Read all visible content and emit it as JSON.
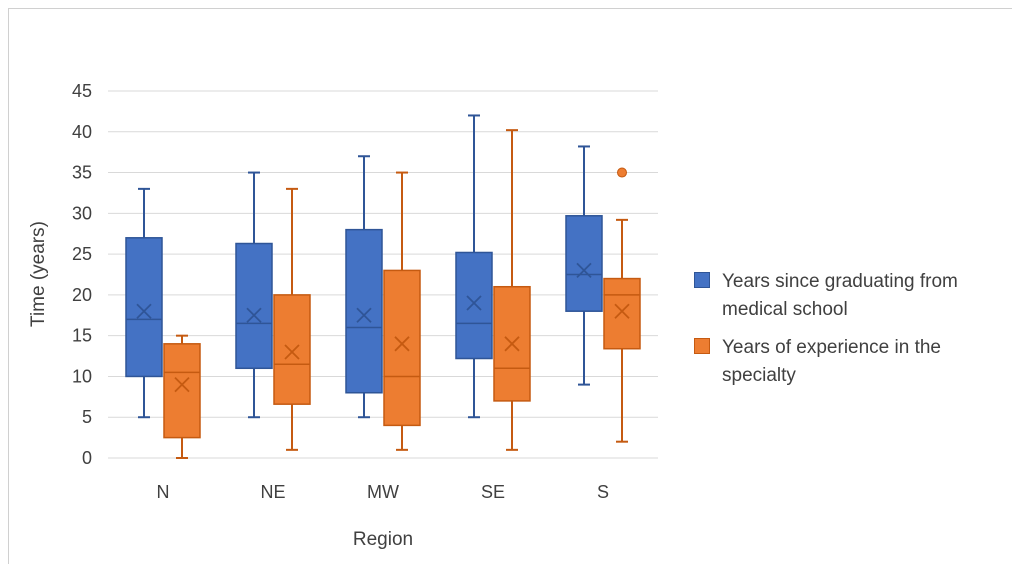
{
  "chart_data": {
    "type": "box",
    "xlabel": "Region",
    "ylabel": "Time (years)",
    "ylim": [
      0,
      45
    ],
    "yticks": [
      0,
      5,
      10,
      15,
      20,
      25,
      30,
      35,
      40,
      45
    ],
    "grid": true,
    "legend_position": "right",
    "categories": [
      "N",
      "NE",
      "MW",
      "SE",
      "S"
    ],
    "series": [
      {
        "name": "Years since graduating from medical school",
        "color": "#4472C4",
        "stroke": "#2F5597",
        "boxes": [
          {
            "min": 5,
            "q1": 10,
            "median": 17,
            "q3": 27,
            "max": 33,
            "mean": 18,
            "outliers": []
          },
          {
            "min": 5,
            "q1": 11,
            "median": 16.5,
            "q3": 26.3,
            "max": 35,
            "mean": 17.5,
            "outliers": []
          },
          {
            "min": 5,
            "q1": 8,
            "median": 16,
            "q3": 28,
            "max": 37,
            "mean": 17.5,
            "outliers": []
          },
          {
            "min": 5,
            "q1": 12.2,
            "median": 16.5,
            "q3": 25.2,
            "max": 42,
            "mean": 19,
            "outliers": []
          },
          {
            "min": 9,
            "q1": 18,
            "median": 22.5,
            "q3": 29.7,
            "max": 38.2,
            "mean": 23,
            "outliers": []
          }
        ]
      },
      {
        "name": "Years of experience in the specialty",
        "color": "#ED7D31",
        "stroke": "#C55A11",
        "boxes": [
          {
            "min": 0,
            "q1": 2.5,
            "median": 10.5,
            "q3": 14,
            "max": 15,
            "mean": 9,
            "outliers": []
          },
          {
            "min": 1,
            "q1": 6.6,
            "median": 11.5,
            "q3": 20,
            "max": 33,
            "mean": 13,
            "outliers": []
          },
          {
            "min": 1,
            "q1": 4,
            "median": 10,
            "q3": 23,
            "max": 35,
            "mean": 14,
            "outliers": []
          },
          {
            "min": 1,
            "q1": 7,
            "median": 11,
            "q3": 21,
            "max": 40.2,
            "mean": 14,
            "outliers": []
          },
          {
            "min": 2,
            "q1": 13.4,
            "median": 20,
            "q3": 22,
            "max": 29.2,
            "mean": 18,
            "outliers": [
              35
            ]
          }
        ]
      }
    ]
  }
}
